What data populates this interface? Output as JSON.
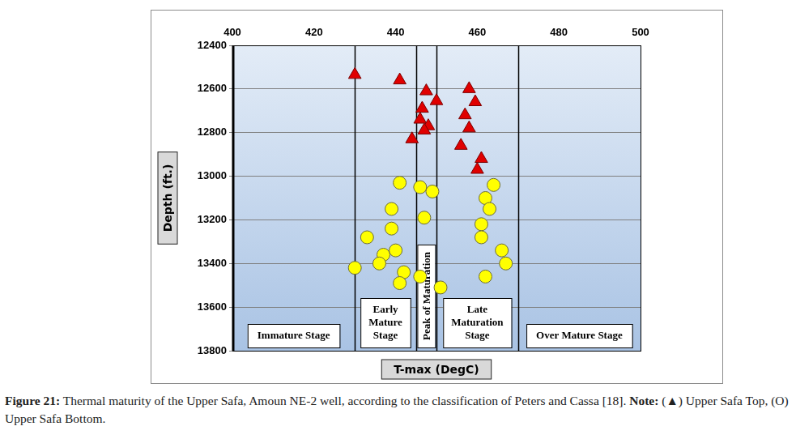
{
  "chart_data": {
    "type": "scatter",
    "x_label": "T-max (DegC)",
    "y_label": "Depth (ft.)",
    "xlim": [
      400,
      500
    ],
    "xticks": [
      400,
      420,
      440,
      460,
      480,
      500
    ],
    "ylim": [
      13800,
      12400
    ],
    "yticks": [
      12400,
      12600,
      12800,
      13000,
      13200,
      13400,
      13600,
      13800
    ],
    "grid": true,
    "series": [
      {
        "name": "Upper Safa Top",
        "color": "#e00000",
        "marker": "triangle",
        "x": [
          430,
          441,
          447.5,
          450,
          446.5,
          446,
          448,
          447,
          444,
          458,
          459.5,
          457,
          458,
          456,
          461,
          460
        ],
        "values": [
          12535,
          12560,
          12610,
          12655,
          12690,
          12740,
          12770,
          12790,
          12830,
          12600,
          12660,
          12720,
          12780,
          12860,
          12920,
          12970
        ]
      },
      {
        "name": "Upper Safa Bottom",
        "color": "#ffff00",
        "marker": "circle",
        "x": [
          441,
          446,
          449,
          464,
          439,
          462,
          463,
          447,
          461,
          439,
          433,
          461,
          437,
          440,
          466,
          436,
          467,
          430,
          442,
          446,
          462,
          441,
          451
        ],
        "values": [
          13030,
          13050,
          13070,
          13040,
          13150,
          13100,
          13150,
          13190,
          13220,
          13240,
          13280,
          13280,
          13360,
          13340,
          13340,
          13400,
          13400,
          13420,
          13440,
          13460,
          13460,
          13490,
          13510
        ]
      }
    ],
    "stages": [
      {
        "label": [
          "Immature Stage"
        ],
        "range": [
          400,
          430
        ]
      },
      {
        "label": [
          "Early",
          "Mature",
          "Stage"
        ],
        "range": [
          430,
          445
        ]
      },
      {
        "label": [
          "Peak of Maturation"
        ],
        "range": [
          445,
          450
        ]
      },
      {
        "label": [
          "Late",
          "Maturation",
          "Stage"
        ],
        "range": [
          450,
          470
        ]
      },
      {
        "label": [
          "Over Mature Stage"
        ],
        "range": [
          470,
          500
        ]
      }
    ],
    "caption": {
      "figure": "Figure 21:",
      "text": "Thermal maturity of the Upper Safa, Amoun NE-2 well, according to the classification of Peters and Cassa [18].",
      "note": "Note:",
      "items": "(▲) Upper Safa Top, (O) Upper Safa Bottom."
    }
  }
}
